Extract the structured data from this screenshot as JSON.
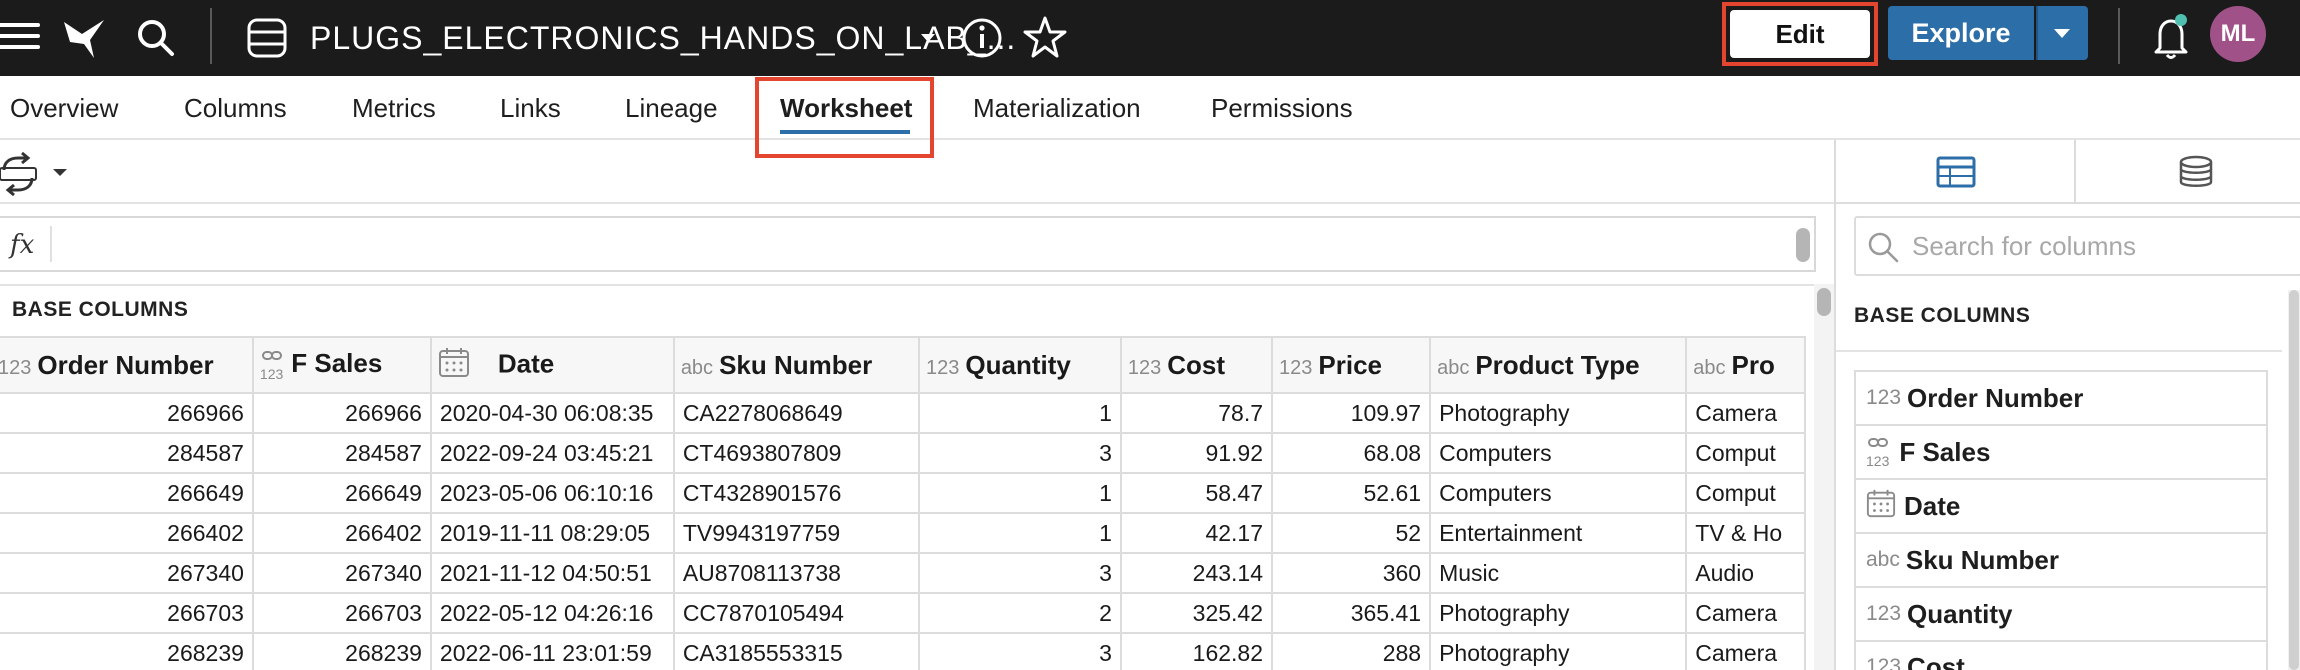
{
  "topbar": {
    "title": "PLUGS_ELECTRONICS_HANDS_ON_LAB_...",
    "edit_label": "Edit",
    "explore_label": "Explore",
    "avatar_initials": "ML",
    "icons": [
      "menu-icon",
      "app-logo-icon",
      "search-icon",
      "database-icon",
      "chevron-down-icon",
      "info-icon",
      "star-icon",
      "bell-icon"
    ],
    "colors": {
      "bar": "#1b1b1b",
      "explore": "#2c6ea8",
      "avatar": "#a05288",
      "highlight": "#e4452f",
      "notification": "#4fbfb0"
    }
  },
  "tabs": [
    {
      "label": "Overview"
    },
    {
      "label": "Columns"
    },
    {
      "label": "Metrics"
    },
    {
      "label": "Links"
    },
    {
      "label": "Lineage"
    },
    {
      "label": "Worksheet",
      "active": true
    },
    {
      "label": "Materialization"
    },
    {
      "label": "Permissions"
    }
  ],
  "formula": {
    "fx_label": "fx"
  },
  "grid": {
    "section_label": "BASE COLUMNS",
    "columns": [
      {
        "type": "123",
        "name": "Order Number"
      },
      {
        "type": "link-123",
        "name": "F Sales"
      },
      {
        "type": "calendar",
        "name": "Date"
      },
      {
        "type": "abc",
        "name": "Sku Number"
      },
      {
        "type": "123",
        "name": "Quantity"
      },
      {
        "type": "123",
        "name": "Cost"
      },
      {
        "type": "123",
        "name": "Price"
      },
      {
        "type": "abc",
        "name": "Product Type"
      },
      {
        "type": "abc",
        "name": "Pro"
      }
    ],
    "rows": [
      [
        "266966",
        "266966",
        "2020-04-30 06:08:35",
        "CA2278068649",
        "1",
        "78.7",
        "109.97",
        "Photography",
        "Camera"
      ],
      [
        "284587",
        "284587",
        "2022-09-24 03:45:21",
        "CT4693807809",
        "3",
        "91.92",
        "68.08",
        "Computers",
        "Comput"
      ],
      [
        "266649",
        "266649",
        "2023-05-06 06:10:16",
        "CT4328901576",
        "1",
        "58.47",
        "52.61",
        "Computers",
        "Comput"
      ],
      [
        "266402",
        "266402",
        "2019-11-11 08:29:05",
        "TV9943197759",
        "1",
        "42.17",
        "52",
        "Entertainment",
        "TV & Ho"
      ],
      [
        "267340",
        "267340",
        "2021-11-12 04:50:51",
        "AU8708113738",
        "3",
        "243.14",
        "360",
        "Music",
        "Audio"
      ],
      [
        "266703",
        "266703",
        "2022-05-12 04:26:16",
        "CC7870105494",
        "2",
        "325.42",
        "365.41",
        "Photography",
        "Camera"
      ],
      [
        "268239",
        "268239",
        "2022-06-11 23:01:59",
        "CA3185553315",
        "3",
        "162.82",
        "288",
        "Photography",
        "Camera"
      ]
    ]
  },
  "panel": {
    "search_placeholder": "Search for columns",
    "section_label": "BASE COLUMNS",
    "items": [
      {
        "type": "123",
        "name": "Order Number"
      },
      {
        "type": "link-123",
        "name": "F Sales"
      },
      {
        "type": "calendar",
        "name": "Date"
      },
      {
        "type": "abc",
        "name": "Sku Number"
      },
      {
        "type": "123",
        "name": "Quantity"
      },
      {
        "type": "123",
        "name": "Cost"
      }
    ]
  }
}
